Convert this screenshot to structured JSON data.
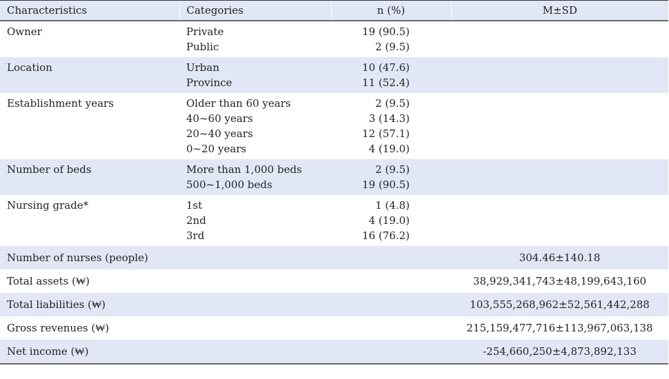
{
  "headers": [
    "Characteristics",
    "Categories",
    "n (%)",
    "M±SD"
  ],
  "groups": [
    {
      "label": "Owner",
      "categories": [
        "Private",
        "Public"
      ],
      "n": [
        "19 (90.5)",
        "2 (9.5)"
      ]
    },
    {
      "label": "Location",
      "categories": [
        "Urban",
        "Province"
      ],
      "n": [
        "10 (47.6)",
        "11 (52.4)"
      ]
    },
    {
      "label": "Establishment years",
      "categories": [
        "Older than 60 years",
        "40~60 years",
        "20~40 years",
        "0~20 years"
      ],
      "n": [
        "2 (9.5)",
        "3 (14.3)",
        "12 (57.1)",
        "4 (19.0)"
      ]
    },
    {
      "label": "Number of beds",
      "categories": [
        "More than 1,000 beds",
        "500~1,000 beds"
      ],
      "n": [
        "2 (9.5)",
        "19 (90.5)"
      ]
    },
    {
      "label": "Nursing grade*",
      "categories": [
        "1st",
        "2nd",
        "3rd"
      ],
      "n": [
        "1 (4.8)",
        "4 (19.0)",
        "16 (76.2)"
      ]
    }
  ],
  "measures": [
    {
      "label": "Number of nurses (people)",
      "value": "304.46±140.18"
    },
    {
      "label": "Total assets (₩)",
      "value": "38,929,341,743±48,199,643,160"
    },
    {
      "label": "Total liabilities (₩)",
      "value": "103,555,268,962±52,561,442,288"
    },
    {
      "label": "Gross revenues (₩)",
      "value": "215,159,477,716±113,967,063,138"
    },
    {
      "label": "Net income (₩)",
      "value": "-254,660,250±4,873,892,133"
    }
  ]
}
